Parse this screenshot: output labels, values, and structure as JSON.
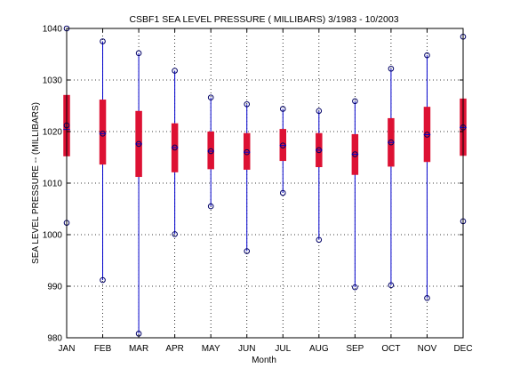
{
  "chart_data": {
    "type": "box",
    "title": "CSBF1  SEA LEVEL PRESSURE ( MILLIBARS) 3/1983 - 10/2003",
    "xlabel": "Month",
    "ylabel": "SEA LEVEL PRESSURE -- (MILLIBARS)",
    "ylim": [
      980,
      1040
    ],
    "yticks": [
      980,
      990,
      1000,
      1010,
      1020,
      1030,
      1040
    ],
    "categories": [
      "JAN",
      "FEB",
      "MAR",
      "APR",
      "MAY",
      "JUN",
      "JUL",
      "AUG",
      "SEP",
      "OCT",
      "NOV",
      "DEC"
    ],
    "grid": true,
    "series": [
      {
        "min": 1002.3,
        "p25": 1015.2,
        "median": 1020.4,
        "mean": 1021.2,
        "p75": 1027.1,
        "max": 1040.0
      },
      {
        "min": 991.2,
        "p25": 1013.6,
        "median": 1019.6,
        "mean": 1019.6,
        "p75": 1026.2,
        "max": 1037.5
      },
      {
        "min": 980.8,
        "p25": 1011.2,
        "median": 1017.6,
        "mean": 1017.6,
        "p75": 1024.0,
        "max": 1035.2
      },
      {
        "min": 1000.1,
        "p25": 1012.1,
        "median": 1016.9,
        "mean": 1016.9,
        "p75": 1021.6,
        "max": 1031.8
      },
      {
        "min": 1005.5,
        "p25": 1012.7,
        "median": 1016.2,
        "mean": 1016.2,
        "p75": 1020.0,
        "max": 1026.6
      },
      {
        "min": 996.8,
        "p25": 1012.6,
        "median": 1016.0,
        "mean": 1016.0,
        "p75": 1019.7,
        "max": 1025.3
      },
      {
        "min": 1008.1,
        "p25": 1014.3,
        "median": 1017.3,
        "mean": 1017.3,
        "p75": 1020.5,
        "max": 1024.4
      },
      {
        "min": 999.0,
        "p25": 1013.1,
        "median": 1016.4,
        "mean": 1016.4,
        "p75": 1019.7,
        "max": 1024.0
      },
      {
        "min": 989.8,
        "p25": 1011.6,
        "median": 1015.6,
        "mean": 1015.6,
        "p75": 1019.5,
        "max": 1025.9
      },
      {
        "min": 990.2,
        "p25": 1013.2,
        "median": 1017.9,
        "mean": 1017.9,
        "p75": 1022.6,
        "max": 1032.2
      },
      {
        "min": 987.7,
        "p25": 1014.1,
        "median": 1019.4,
        "mean": 1019.4,
        "p75": 1024.8,
        "max": 1034.8
      },
      {
        "min": 1002.6,
        "p25": 1015.3,
        "median": 1020.8,
        "mean": 1020.8,
        "p75": 1026.4,
        "max": 1038.4
      }
    ],
    "colors": {
      "whisker": "#0000cc",
      "box": "#dd1133",
      "marker": "#000066",
      "grid": "#000000",
      "axis": "#000000"
    }
  }
}
